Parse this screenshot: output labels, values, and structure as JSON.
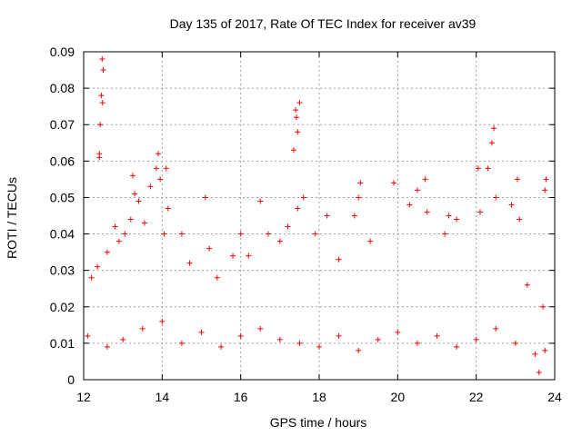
{
  "chart_data": {
    "type": "scatter",
    "title": "Day 135 of 2017, Rate Of TEC Index for receiver av39",
    "xlabel": "GPS time / hours",
    "ylabel": "ROTI / TECUs",
    "xlim": [
      12,
      24
    ],
    "ylim": [
      0,
      0.09
    ],
    "x_ticks": [
      "12",
      "14",
      "16",
      "18",
      "20",
      "22",
      "24"
    ],
    "y_ticks": [
      "0",
      "0.01",
      "0.02",
      "0.03",
      "0.04",
      "0.05",
      "0.06",
      "0.07",
      "0.08",
      "0.09"
    ],
    "grid": true,
    "marker": "+",
    "color": "#ff0000",
    "series": [
      {
        "points": [
          [
            12.2,
            0.028
          ],
          [
            12.35,
            0.031
          ],
          [
            12.4,
            0.062
          ],
          [
            12.4,
            0.061
          ],
          [
            12.42,
            0.07
          ],
          [
            12.45,
            0.078
          ],
          [
            12.47,
            0.088
          ],
          [
            12.5,
            0.085
          ],
          [
            12.48,
            0.076
          ],
          [
            12.6,
            0.035
          ],
          [
            12.8,
            0.042
          ],
          [
            12.9,
            0.038
          ],
          [
            13.05,
            0.04
          ],
          [
            13.2,
            0.044
          ],
          [
            13.25,
            0.056
          ],
          [
            13.3,
            0.051
          ],
          [
            13.4,
            0.049
          ],
          [
            13.55,
            0.043
          ],
          [
            13.7,
            0.053
          ],
          [
            13.85,
            0.058
          ],
          [
            13.9,
            0.062
          ],
          [
            13.95,
            0.055
          ],
          [
            14.1,
            0.058
          ],
          [
            14.15,
            0.047
          ],
          [
            14.05,
            0.04
          ],
          [
            14.5,
            0.04
          ],
          [
            14.7,
            0.032
          ],
          [
            15.1,
            0.05
          ],
          [
            15.2,
            0.036
          ],
          [
            15.4,
            0.028
          ],
          [
            15.8,
            0.034
          ],
          [
            16.0,
            0.04
          ],
          [
            16.2,
            0.034
          ],
          [
            16.5,
            0.049
          ],
          [
            16.7,
            0.04
          ],
          [
            17.0,
            0.038
          ],
          [
            17.2,
            0.042
          ],
          [
            17.35,
            0.063
          ],
          [
            17.4,
            0.074
          ],
          [
            17.42,
            0.072
          ],
          [
            17.45,
            0.068
          ],
          [
            17.5,
            0.076
          ],
          [
            17.45,
            0.047
          ],
          [
            17.6,
            0.05
          ],
          [
            17.9,
            0.04
          ],
          [
            18.2,
            0.045
          ],
          [
            18.5,
            0.033
          ],
          [
            18.9,
            0.045
          ],
          [
            19.0,
            0.05
          ],
          [
            19.05,
            0.054
          ],
          [
            19.3,
            0.038
          ],
          [
            19.9,
            0.054
          ],
          [
            20.3,
            0.048
          ],
          [
            20.5,
            0.052
          ],
          [
            20.7,
            0.055
          ],
          [
            20.75,
            0.046
          ],
          [
            21.2,
            0.04
          ],
          [
            21.3,
            0.045
          ],
          [
            21.5,
            0.044
          ],
          [
            22.05,
            0.058
          ],
          [
            22.1,
            0.046
          ],
          [
            22.3,
            0.058
          ],
          [
            22.4,
            0.065
          ],
          [
            22.45,
            0.069
          ],
          [
            22.5,
            0.05
          ],
          [
            22.9,
            0.048
          ],
          [
            23.05,
            0.055
          ],
          [
            23.1,
            0.044
          ],
          [
            23.3,
            0.026
          ],
          [
            23.75,
            0.052
          ],
          [
            23.78,
            0.055
          ],
          [
            23.7,
            0.02
          ],
          [
            23.75,
            0.008
          ],
          [
            12.1,
            0.012
          ],
          [
            12.6,
            0.009
          ],
          [
            13.0,
            0.011
          ],
          [
            13.5,
            0.014
          ],
          [
            14.0,
            0.016
          ],
          [
            14.5,
            0.01
          ],
          [
            15.0,
            0.013
          ],
          [
            15.5,
            0.009
          ],
          [
            16.0,
            0.012
          ],
          [
            16.5,
            0.014
          ],
          [
            17.0,
            0.011
          ],
          [
            17.5,
            0.01
          ],
          [
            18.0,
            0.009
          ],
          [
            18.5,
            0.012
          ],
          [
            19.0,
            0.008
          ],
          [
            19.5,
            0.011
          ],
          [
            20.0,
            0.013
          ],
          [
            20.5,
            0.01
          ],
          [
            21.0,
            0.012
          ],
          [
            21.5,
            0.009
          ],
          [
            22.0,
            0.011
          ],
          [
            22.5,
            0.014
          ],
          [
            23.0,
            0.01
          ],
          [
            23.5,
            0.007
          ],
          [
            23.6,
            0.002
          ]
        ]
      }
    ]
  }
}
